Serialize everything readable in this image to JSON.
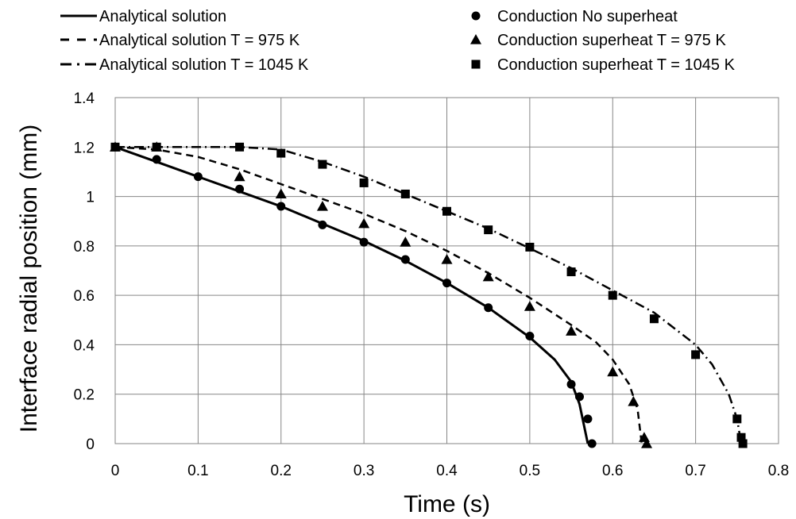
{
  "chart_data": {
    "type": "line",
    "xlabel": "Time (s)",
    "ylabel": "Interface radial position (mm)",
    "xlim": [
      0,
      0.8
    ],
    "ylim": [
      0,
      1.4
    ],
    "x_ticks": [
      "0",
      "0.1",
      "0.2",
      "0.3",
      "0.4",
      "0.5",
      "0.6",
      "0.7",
      "0.8"
    ],
    "y_ticks": [
      "0",
      "0.2",
      "0.4",
      "0.6",
      "0.8",
      "1",
      "1.2",
      "1.4"
    ],
    "grid": true,
    "legend_position": "top",
    "series": [
      {
        "name": "Analytical solution",
        "kind": "line",
        "style": "solid",
        "color": "#000000",
        "x": [
          0,
          0.05,
          0.1,
          0.15,
          0.2,
          0.25,
          0.3,
          0.35,
          0.4,
          0.45,
          0.5,
          0.53,
          0.55,
          0.56,
          0.57
        ],
        "y": [
          1.2,
          1.14,
          1.08,
          1.02,
          0.96,
          0.89,
          0.82,
          0.74,
          0.65,
          0.55,
          0.43,
          0.34,
          0.25,
          0.16,
          0.0
        ]
      },
      {
        "name": "Analytical solution T = 975 K",
        "kind": "line",
        "style": "dashed",
        "color": "#000000",
        "x": [
          0,
          0.05,
          0.1,
          0.15,
          0.2,
          0.25,
          0.3,
          0.35,
          0.4,
          0.45,
          0.5,
          0.55,
          0.58,
          0.6,
          0.62,
          0.63,
          0.635
        ],
        "y": [
          1.2,
          1.19,
          1.16,
          1.11,
          1.05,
          0.99,
          0.93,
          0.86,
          0.78,
          0.69,
          0.59,
          0.48,
          0.41,
          0.34,
          0.24,
          0.14,
          0.0
        ]
      },
      {
        "name": "Analytical solution T = 1045 K",
        "kind": "line",
        "style": "dashdot",
        "color": "#000000",
        "x": [
          0,
          0.05,
          0.1,
          0.15,
          0.2,
          0.25,
          0.3,
          0.35,
          0.4,
          0.45,
          0.5,
          0.55,
          0.6,
          0.65,
          0.7,
          0.72,
          0.74,
          0.75,
          0.755
        ],
        "y": [
          1.2,
          1.2,
          1.2,
          1.2,
          1.19,
          1.14,
          1.08,
          1.01,
          0.94,
          0.87,
          0.79,
          0.71,
          0.62,
          0.53,
          0.4,
          0.32,
          0.2,
          0.1,
          0.0
        ]
      },
      {
        "name": "Conduction No superheat",
        "kind": "scatter",
        "marker": "circle",
        "color": "#000000",
        "x": [
          0,
          0.05,
          0.1,
          0.15,
          0.2,
          0.25,
          0.3,
          0.35,
          0.4,
          0.45,
          0.5,
          0.55,
          0.56,
          0.57,
          0.575
        ],
        "y": [
          1.2,
          1.15,
          1.08,
          1.03,
          0.96,
          0.885,
          0.815,
          0.745,
          0.65,
          0.55,
          0.435,
          0.24,
          0.19,
          0.1,
          0.0
        ]
      },
      {
        "name": "Conduction superheat T = 975 K",
        "kind": "scatter",
        "marker": "triangle",
        "color": "#000000",
        "x": [
          0,
          0.05,
          0.15,
          0.2,
          0.25,
          0.3,
          0.35,
          0.4,
          0.45,
          0.5,
          0.55,
          0.6,
          0.625,
          0.638,
          0.641
        ],
        "y": [
          1.2,
          1.2,
          1.08,
          1.01,
          0.96,
          0.89,
          0.815,
          0.745,
          0.675,
          0.555,
          0.455,
          0.29,
          0.17,
          0.025,
          0.0
        ]
      },
      {
        "name": "Conduction superheat T = 1045 K",
        "kind": "scatter",
        "marker": "square",
        "color": "#000000",
        "x": [
          0,
          0.05,
          0.15,
          0.2,
          0.25,
          0.3,
          0.35,
          0.4,
          0.45,
          0.5,
          0.55,
          0.6,
          0.65,
          0.7,
          0.75,
          0.755,
          0.757
        ],
        "y": [
          1.2,
          1.2,
          1.2,
          1.175,
          1.13,
          1.055,
          1.01,
          0.94,
          0.865,
          0.795,
          0.695,
          0.6,
          0.505,
          0.36,
          0.1,
          0.025,
          0.0
        ]
      }
    ]
  }
}
